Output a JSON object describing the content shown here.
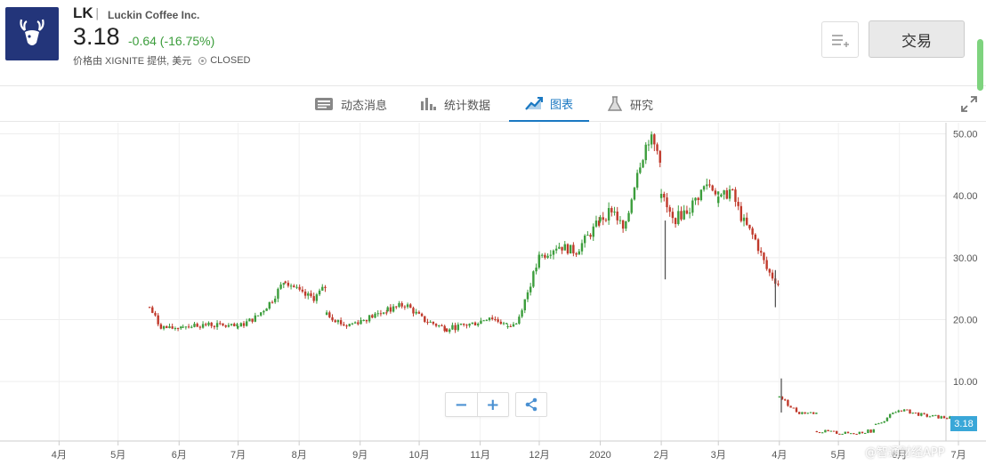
{
  "header": {
    "ticker": "LK",
    "separator": "|",
    "company": "Luckin Coffee Inc.",
    "price": "3.18",
    "change": "-0.64 (-16.75%)",
    "provider": "价格由 XIGNITE 提供, 美元",
    "status": "CLOSED",
    "trade_label": "交易",
    "icons": {
      "logo": "deer-logo",
      "watchlist": "add-to-list-icon",
      "status": "clock-icon"
    },
    "colors": {
      "logo_bg": "#23357a",
      "change": "#3c9d3c"
    }
  },
  "tabs": [
    {
      "label": "动态消息",
      "icon": "news-icon",
      "active": false
    },
    {
      "label": "统计数据",
      "icon": "bar-stats-icon",
      "active": false
    },
    {
      "label": "图表",
      "icon": "chart-trend-icon",
      "active": true
    },
    {
      "label": "研究",
      "icon": "flask-icon",
      "active": false
    }
  ],
  "controls": {
    "zoom_out": "−",
    "zoom_in": "+",
    "share_icon": "share-icon",
    "expand_icon": "expand-icon"
  },
  "last_price_tag": "3.18",
  "watermark": "@智通财经APP",
  "chart_data": {
    "type": "candlestick",
    "yticks": [
      "50.00",
      "40.00",
      "30.00",
      "20.00",
      "10.00"
    ],
    "ytick_values": [
      50,
      40,
      30,
      20,
      10
    ],
    "ylim": [
      0.4,
      51.8
    ],
    "xticks": [
      "4月",
      "5月",
      "6月",
      "7月",
      "8月",
      "9月",
      "10月",
      "11月",
      "12月",
      "2020",
      "2月",
      "3月",
      "4月",
      "5月",
      "6月",
      "7月"
    ],
    "xlim": [
      "2019-03-02",
      "2020-07-15"
    ],
    "grid": true,
    "colors": {
      "up": "#3c9d3c",
      "down": "#c0392b",
      "last_price_tag": "#3aa7d8"
    },
    "series": [
      {
        "from": "2019-05-17",
        "to": "2019-06-03",
        "path": [
          [
            0,
            22
          ],
          [
            0.3,
            19
          ],
          [
            0.6,
            18.5
          ],
          [
            1,
            19
          ]
        ]
      },
      {
        "from": "2019-06-03",
        "to": "2019-07-01",
        "path": [
          [
            0,
            19
          ],
          [
            0.5,
            19.2
          ],
          [
            1,
            18.8
          ]
        ]
      },
      {
        "from": "2019-07-01",
        "to": "2019-07-25",
        "path": [
          [
            0,
            18.8
          ],
          [
            0.4,
            20.5
          ],
          [
            0.7,
            23
          ],
          [
            1,
            26.5
          ]
        ]
      },
      {
        "from": "2019-07-25",
        "to": "2019-08-15",
        "path": [
          [
            0,
            26.5
          ],
          [
            0.4,
            24
          ],
          [
            0.7,
            23.5
          ],
          [
            1,
            25.5
          ]
        ]
      },
      {
        "from": "2019-08-15",
        "to": "2019-09-15",
        "path": [
          [
            0,
            21
          ],
          [
            0.3,
            19
          ],
          [
            0.6,
            20
          ],
          [
            1,
            21.5
          ]
        ]
      },
      {
        "from": "2019-09-15",
        "to": "2019-10-15",
        "path": [
          [
            0,
            21.5
          ],
          [
            0.3,
            22.5
          ],
          [
            0.6,
            20
          ],
          [
            1,
            18.5
          ]
        ]
      },
      {
        "from": "2019-10-15",
        "to": "2019-11-15",
        "path": [
          [
            0,
            18.5
          ],
          [
            0.5,
            19.5
          ],
          [
            0.7,
            20.5
          ],
          [
            1,
            19
          ]
        ]
      },
      {
        "from": "2019-11-15",
        "to": "2019-12-01",
        "path": [
          [
            0,
            19
          ],
          [
            0.3,
            19.5
          ],
          [
            0.45,
            22
          ],
          [
            0.6,
            24
          ],
          [
            1,
            30
          ]
        ]
      },
      {
        "from": "2019-12-01",
        "to": "2020-01-01",
        "path": [
          [
            0,
            30
          ],
          [
            0.3,
            32
          ],
          [
            0.6,
            31
          ],
          [
            1,
            36
          ]
        ]
      },
      {
        "from": "2020-01-01",
        "to": "2020-02-01",
        "path": [
          [
            0,
            36
          ],
          [
            0.2,
            38
          ],
          [
            0.4,
            34
          ],
          [
            0.6,
            44
          ],
          [
            0.8,
            49.5
          ],
          [
            1,
            46
          ]
        ]
      },
      {
        "from": "2020-02-01",
        "to": "2020-03-01",
        "path": [
          [
            0,
            40
          ],
          [
            0.2,
            36
          ],
          [
            0.5,
            38
          ],
          [
            0.8,
            42
          ],
          [
            1,
            40.5
          ]
        ]
      },
      {
        "from": "2020-03-01",
        "to": "2020-04-01",
        "path": [
          [
            0,
            39
          ],
          [
            0.2,
            41
          ],
          [
            0.4,
            36
          ],
          [
            0.6,
            33
          ],
          [
            0.8,
            28
          ],
          [
            1,
            25.5
          ]
        ]
      },
      {
        "from": "2020-04-01",
        "to": "2020-04-20",
        "path": [
          [
            0,
            7.5
          ],
          [
            0.5,
            5
          ],
          [
            1,
            4.9
          ]
        ]
      },
      {
        "from": "2020-04-20",
        "to": "2020-05-20",
        "path": [
          [
            0,
            2
          ],
          [
            0.5,
            1.6
          ],
          [
            1,
            2.1
          ]
        ]
      },
      {
        "from": "2020-05-20",
        "to": "2020-06-30",
        "path": [
          [
            0,
            3
          ],
          [
            0.3,
            5.5
          ],
          [
            0.6,
            4.5
          ],
          [
            1,
            4
          ]
        ]
      }
    ],
    "spikes": [
      {
        "date": "2020-02-03",
        "high": 36,
        "low": 26.5
      },
      {
        "date": "2020-03-30",
        "high": 28,
        "low": 22
      },
      {
        "date": "2020-04-02",
        "high": 10.5,
        "low": 5
      }
    ]
  }
}
